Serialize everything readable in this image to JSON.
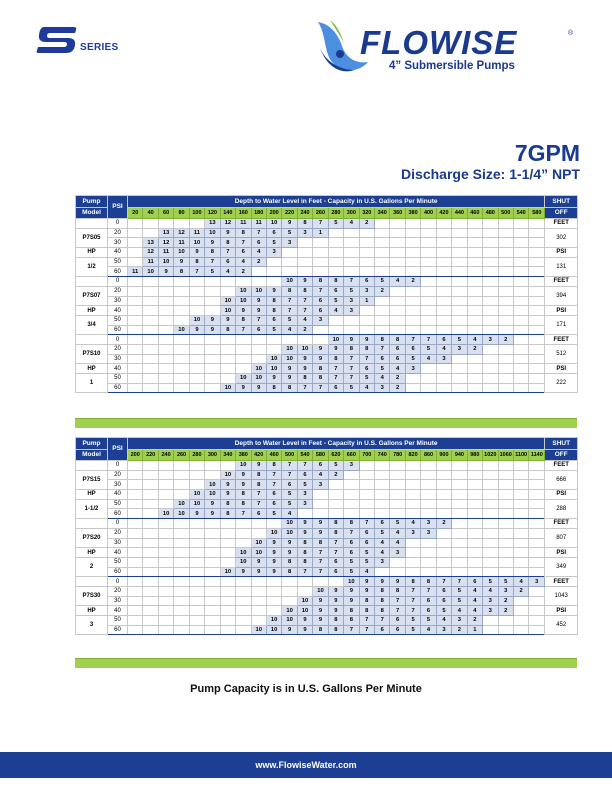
{
  "header": {
    "series_letter": "S",
    "series_text": "SERIES",
    "brand": "FLOWISE",
    "brand_reg": "®",
    "tagline": "4” Submersible Pumps",
    "model_title": "7GPM",
    "discharge": "Discharge Size: 1-1/4” NPT"
  },
  "tables": [
    {
      "pump_label": "Pump",
      "model_label": "Model",
      "psi_label": "PSI",
      "caption": "Depth to Water Level in Feet - Capacity in U.S. Gallons Per Minute",
      "shut_label": "SHUT",
      "off_label": "OFF",
      "depths": [
        "20",
        "40",
        "60",
        "80",
        "100",
        "120",
        "140",
        "160",
        "180",
        "200",
        "220",
        "240",
        "260",
        "280",
        "300",
        "320",
        "340",
        "360",
        "380",
        "400",
        "420",
        "440",
        "460",
        "480",
        "500",
        "540",
        "580"
      ],
      "groups": [
        {
          "labels": [
            "P7S05",
            "HP",
            "1/2"
          ],
          "shut": [
            "FEET",
            "302",
            "PSI",
            "131"
          ],
          "rows": [
            {
              "psi": "0",
              "start": 5,
              "values": [
                "13",
                "12",
                "11",
                "11",
                "10",
                "9",
                "8",
                "7",
                "5",
                "4",
                "2"
              ]
            },
            {
              "psi": "20",
              "start": 2,
              "values": [
                "13",
                "12",
                "11",
                "10",
                "9",
                "8",
                "7",
                "6",
                "5",
                "3",
                "1"
              ]
            },
            {
              "psi": "30",
              "start": 1,
              "values": [
                "13",
                "12",
                "11",
                "10",
                "9",
                "8",
                "7",
                "6",
                "5",
                "3"
              ]
            },
            {
              "psi": "40",
              "start": 1,
              "values": [
                "12",
                "11",
                "10",
                "9",
                "8",
                "7",
                "6",
                "4",
                "3"
              ]
            },
            {
              "psi": "50",
              "start": 1,
              "values": [
                "11",
                "10",
                "9",
                "8",
                "7",
                "6",
                "4",
                "2"
              ]
            },
            {
              "psi": "60",
              "start": 0,
              "values": [
                "11",
                "10",
                "9",
                "8",
                "7",
                "5",
                "4",
                "2"
              ]
            }
          ]
        },
        {
          "labels": [
            "P7S07",
            "HP",
            "3/4"
          ],
          "shut": [
            "FEET",
            "394",
            "PSI",
            "171"
          ],
          "rows": [
            {
              "psi": "0",
              "start": 10,
              "values": [
                "10",
                "9",
                "8",
                "8",
                "7",
                "6",
                "5",
                "4",
                "2"
              ]
            },
            {
              "psi": "20",
              "start": 7,
              "values": [
                "10",
                "10",
                "9",
                "8",
                "8",
                "7",
                "6",
                "5",
                "3",
                "2"
              ]
            },
            {
              "psi": "30",
              "start": 6,
              "values": [
                "10",
                "10",
                "9",
                "8",
                "7",
                "7",
                "6",
                "5",
                "3",
                "1"
              ]
            },
            {
              "psi": "40",
              "start": 6,
              "values": [
                "10",
                "9",
                "9",
                "8",
                "7",
                "7",
                "6",
                "4",
                "3"
              ]
            },
            {
              "psi": "50",
              "start": 4,
              "values": [
                "10",
                "9",
                "9",
                "8",
                "7",
                "6",
                "5",
                "4",
                "3"
              ]
            },
            {
              "psi": "60",
              "start": 3,
              "values": [
                "10",
                "9",
                "9",
                "8",
                "7",
                "6",
                "5",
                "4",
                "2"
              ]
            }
          ]
        },
        {
          "labels": [
            "P7S10",
            "HP",
            "1"
          ],
          "shut": [
            "FEET",
            "512",
            "PSI",
            "222"
          ],
          "rows": [
            {
              "psi": "0",
              "start": 13,
              "values": [
                "10",
                "9",
                "9",
                "8",
                "8",
                "7",
                "7",
                "6",
                "5",
                "4",
                "3",
                "2"
              ]
            },
            {
              "psi": "20",
              "start": 10,
              "values": [
                "10",
                "10",
                "9",
                "9",
                "8",
                "8",
                "7",
                "6",
                "6",
                "5",
                "4",
                "3",
                "2"
              ]
            },
            {
              "psi": "30",
              "start": 9,
              "values": [
                "10",
                "10",
                "9",
                "9",
                "8",
                "7",
                "7",
                "6",
                "6",
                "5",
                "4",
                "3"
              ]
            },
            {
              "psi": "40",
              "start": 8,
              "values": [
                "10",
                "10",
                "9",
                "9",
                "8",
                "7",
                "7",
                "6",
                "5",
                "4",
                "3"
              ]
            },
            {
              "psi": "50",
              "start": 7,
              "values": [
                "10",
                "10",
                "9",
                "9",
                "8",
                "8",
                "7",
                "7",
                "5",
                "4",
                "2"
              ]
            },
            {
              "psi": "60",
              "start": 6,
              "values": [
                "10",
                "9",
                "9",
                "8",
                "8",
                "7",
                "7",
                "6",
                "5",
                "4",
                "3",
                "2"
              ]
            }
          ]
        }
      ]
    },
    {
      "pump_label": "Pump",
      "model_label": "Model",
      "psi_label": "PSI",
      "caption": "Depth to Water Level in Feet - Capacity in U.S. Gallons Per Minute",
      "shut_label": "SHUT",
      "off_label": "OFF",
      "depths": [
        "200",
        "220",
        "240",
        "260",
        "280",
        "300",
        "340",
        "380",
        "420",
        "460",
        "500",
        "540",
        "580",
        "620",
        "660",
        "700",
        "740",
        "780",
        "820",
        "860",
        "900",
        "940",
        "980",
        "1020",
        "1060",
        "1100",
        "1140"
      ],
      "groups": [
        {
          "labels": [
            "P7S15",
            "HP",
            "1-1/2"
          ],
          "shut": [
            "FEET",
            "666",
            "PSI",
            "288"
          ],
          "rows": [
            {
              "psi": "0",
              "start": 7,
              "values": [
                "10",
                "9",
                "8",
                "7",
                "7",
                "6",
                "5",
                "3"
              ]
            },
            {
              "psi": "20",
              "start": 6,
              "values": [
                "10",
                "9",
                "8",
                "7",
                "7",
                "6",
                "4",
                "2"
              ]
            },
            {
              "psi": "30",
              "start": 5,
              "values": [
                "10",
                "9",
                "9",
                "8",
                "7",
                "6",
                "5",
                "3"
              ]
            },
            {
              "psi": "40",
              "start": 4,
              "values": [
                "10",
                "10",
                "9",
                "8",
                "7",
                "6",
                "5",
                "3"
              ]
            },
            {
              "psi": "50",
              "start": 3,
              "values": [
                "10",
                "10",
                "9",
                "8",
                "8",
                "7",
                "6",
                "5",
                "3"
              ]
            },
            {
              "psi": "60",
              "start": 2,
              "values": [
                "10",
                "10",
                "9",
                "9",
                "8",
                "7",
                "6",
                "5",
                "4"
              ]
            }
          ]
        },
        {
          "labels": [
            "P7S20",
            "HP",
            "2"
          ],
          "shut": [
            "FEET",
            "807",
            "PSI",
            "349"
          ],
          "rows": [
            {
              "psi": "0",
              "start": 10,
              "values": [
                "10",
                "9",
                "9",
                "8",
                "8",
                "7",
                "6",
                "5",
                "4",
                "3",
                "2"
              ]
            },
            {
              "psi": "20",
              "start": 9,
              "values": [
                "10",
                "10",
                "9",
                "9",
                "8",
                "7",
                "6",
                "5",
                "4",
                "3",
                "3"
              ]
            },
            {
              "psi": "30",
              "start": 8,
              "values": [
                "10",
                "9",
                "9",
                "8",
                "8",
                "7",
                "6",
                "6",
                "4",
                "4"
              ]
            },
            {
              "psi": "40",
              "start": 7,
              "values": [
                "10",
                "10",
                "9",
                "9",
                "8",
                "7",
                "7",
                "6",
                "5",
                "4",
                "3"
              ]
            },
            {
              "psi": "50",
              "start": 7,
              "values": [
                "10",
                "9",
                "9",
                "8",
                "8",
                "7",
                "6",
                "5",
                "5",
                "3"
              ]
            },
            {
              "psi": "60",
              "start": 6,
              "values": [
                "10",
                "9",
                "9",
                "9",
                "8",
                "7",
                "7",
                "6",
                "5",
                "4"
              ]
            }
          ]
        },
        {
          "labels": [
            "P7S30",
            "HP",
            "3"
          ],
          "shut": [
            "FEET",
            "1043",
            "PSI",
            "452"
          ],
          "rows": [
            {
              "psi": "0",
              "start": 14,
              "values": [
                "10",
                "9",
                "9",
                "9",
                "8",
                "8",
                "7",
                "7",
                "6",
                "5",
                "5",
                "4",
                "3",
                "2"
              ]
            },
            {
              "psi": "20",
              "start": 12,
              "values": [
                "10",
                "9",
                "9",
                "9",
                "8",
                "8",
                "7",
                "7",
                "6",
                "5",
                "4",
                "4",
                "3",
                "2"
              ]
            },
            {
              "psi": "30",
              "start": 11,
              "values": [
                "10",
                "9",
                "9",
                "9",
                "8",
                "8",
                "7",
                "7",
                "6",
                "6",
                "5",
                "4",
                "3",
                "2"
              ]
            },
            {
              "psi": "40",
              "start": 10,
              "values": [
                "10",
                "10",
                "9",
                "9",
                "8",
                "8",
                "8",
                "7",
                "7",
                "6",
                "5",
                "4",
                "4",
                "3",
                "2"
              ]
            },
            {
              "psi": "50",
              "start": 9,
              "values": [
                "10",
                "10",
                "9",
                "9",
                "8",
                "8",
                "7",
                "7",
                "6",
                "5",
                "5",
                "4",
                "3",
                "2"
              ]
            },
            {
              "psi": "60",
              "start": 8,
              "values": [
                "10",
                "10",
                "9",
                "9",
                "8",
                "8",
                "7",
                "7",
                "6",
                "6",
                "5",
                "4",
                "3",
                "2",
                "1"
              ]
            }
          ]
        }
      ]
    }
  ],
  "footnote": "Pump Capacity is in U.S. Gallons Per Minute",
  "footer_url": "www.FlowiseWater.com",
  "colors": {
    "navy": "#1c3f93",
    "green": "#9fd050",
    "cell": "#d9e1f0"
  }
}
